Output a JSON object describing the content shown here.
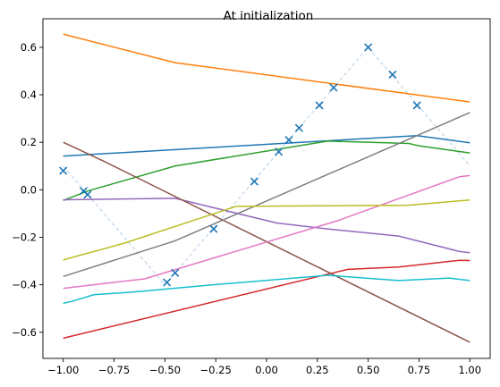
{
  "chart_data": {
    "type": "line",
    "title": "At initialization",
    "xlabel": "",
    "ylabel": "",
    "xlim": [
      -1.1,
      1.1
    ],
    "ylim": [
      -0.71,
      0.72
    ],
    "grid": false,
    "xticks": [
      -1.0,
      -0.75,
      -0.5,
      -0.25,
      0.0,
      0.25,
      0.5,
      0.75,
      1.0
    ],
    "xtick_labels": [
      "−1.00",
      "−0.75",
      "−0.50",
      "−0.25",
      "0.00",
      "0.25",
      "0.50",
      "0.75",
      "1.00"
    ],
    "yticks": [
      -0.6,
      -0.4,
      -0.2,
      0.0,
      0.2,
      0.4,
      0.6
    ],
    "ytick_labels": [
      "−0.6",
      "−0.4",
      "−0.2",
      "0.0",
      "0.2",
      "0.4",
      "0.6"
    ],
    "target_line": {
      "color": "#c6dbef",
      "x": [
        -1.0,
        -0.5,
        0.5,
        1.0
      ],
      "y": [
        0.1,
        -0.4,
        0.6,
        0.1
      ]
    },
    "samples": {
      "color": "#1f77b4",
      "marker": "x",
      "x": [
        -1.0,
        -0.9,
        -0.88,
        -0.49,
        -0.45,
        -0.26,
        -0.06,
        0.06,
        0.11,
        0.16,
        0.26,
        0.33,
        0.5,
        0.62,
        0.74
      ],
      "y": [
        0.08,
        -0.005,
        -0.02,
        -0.39,
        -0.35,
        -0.165,
        0.035,
        0.16,
        0.21,
        0.26,
        0.355,
        0.43,
        0.6,
        0.485,
        0.355
      ]
    },
    "series": [
      {
        "color": "#1f77b4",
        "x": [
          -1.0,
          0.74,
          1.0
        ],
        "y": [
          0.142,
          0.228,
          0.198
        ]
      },
      {
        "color": "#ff7f0e",
        "x": [
          -1.0,
          -0.45,
          1.0
        ],
        "y": [
          0.655,
          0.535,
          0.37
        ]
      },
      {
        "color": "#2ca02c",
        "x": [
          -1.0,
          -0.88,
          -0.45,
          0.3,
          0.7,
          0.75,
          1.0
        ],
        "y": [
          -0.045,
          -0.005,
          0.1,
          0.205,
          0.195,
          0.185,
          0.155
        ]
      },
      {
        "color": "#d62728",
        "x": [
          -1.0,
          0.4,
          0.65,
          0.95,
          1.0
        ],
        "y": [
          -0.625,
          -0.335,
          -0.325,
          -0.297,
          -0.298
        ]
      },
      {
        "color": "#9467bd",
        "x": [
          -1.0,
          -0.45,
          0.05,
          0.3,
          0.65,
          0.95,
          1.0
        ],
        "y": [
          -0.042,
          -0.036,
          -0.14,
          -0.165,
          -0.195,
          -0.26,
          -0.265
        ]
      },
      {
        "color": "#8c564b",
        "x": [
          -1.0,
          -0.8,
          1.0
        ],
        "y": [
          0.2,
          0.12,
          -0.642
        ]
      },
      {
        "color": "#e377c2",
        "x": [
          -1.0,
          -0.6,
          0.35,
          0.95,
          1.0
        ],
        "y": [
          -0.415,
          -0.375,
          -0.13,
          0.055,
          0.06
        ]
      },
      {
        "color": "#7f7f7f",
        "x": [
          -1.0,
          -0.45,
          1.0
        ],
        "y": [
          -0.365,
          -0.215,
          0.325
        ]
      },
      {
        "color": "#bcbd22",
        "x": [
          -1.0,
          -0.7,
          -0.15,
          0.7,
          1.0
        ],
        "y": [
          -0.295,
          -0.225,
          -0.07,
          -0.065,
          -0.043
        ]
      },
      {
        "color": "#17becf",
        "x": [
          -1.0,
          -0.95,
          -0.85,
          -0.65,
          -0.3,
          0.3,
          0.65,
          0.9,
          1.0
        ],
        "y": [
          -0.478,
          -0.468,
          -0.442,
          -0.43,
          -0.403,
          -0.36,
          -0.382,
          -0.372,
          -0.382
        ]
      }
    ]
  }
}
